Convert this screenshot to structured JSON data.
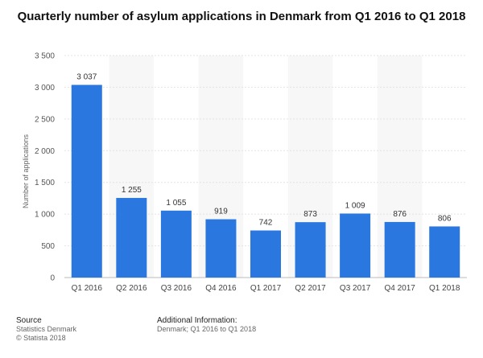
{
  "chart_data": {
    "type": "bar",
    "title": "Quarterly number of asylum applications in Denmark from Q1 2016 to Q1 2018",
    "ylabel": "Number of applications",
    "categories": [
      "Q1 2016",
      "Q2 2016",
      "Q3 2016",
      "Q4 2016",
      "Q1 2017",
      "Q2 2017",
      "Q3 2017",
      "Q4 2017",
      "Q1 2018"
    ],
    "values": [
      3037,
      1255,
      1055,
      919,
      742,
      873,
      1009,
      876,
      806
    ],
    "data_labels": [
      "3 037",
      "1 255",
      "1 055",
      "919",
      "742",
      "873",
      "1 009",
      "876",
      "806"
    ],
    "ylim": [
      0,
      3500
    ],
    "yticks": [
      0,
      500,
      1000,
      1500,
      2000,
      2500,
      3000,
      3500
    ],
    "ytick_labels": [
      "0",
      "500",
      "1 000",
      "1 500",
      "2 000",
      "2 500",
      "3 000",
      "3 500"
    ],
    "grid": true,
    "bar_color": "#2a77e0"
  },
  "footer": {
    "source_heading": "Source",
    "source_line1": "Statistics Denmark",
    "source_line2": "© Statista 2018",
    "info_heading": "Additional Information:",
    "info_line1": "Denmark; Q1 2016 to Q1 2018"
  }
}
